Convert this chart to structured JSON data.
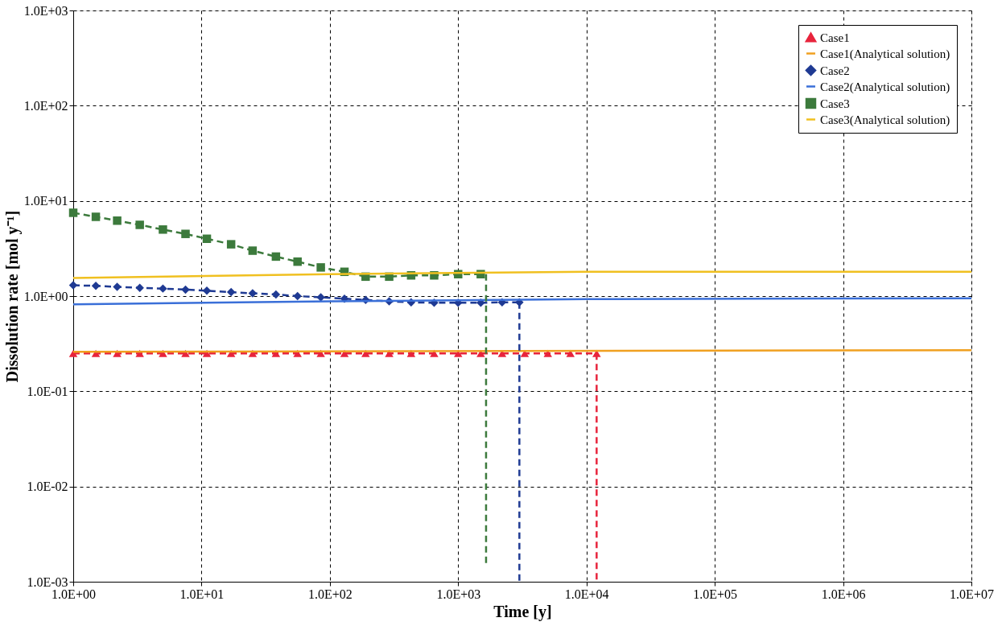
{
  "chart_data": {
    "type": "line",
    "xlabel": "Time [y]",
    "ylabel": "Dissolution rate [mol y⁻¹]",
    "log": "xy",
    "grid": true,
    "legend": "top right",
    "xlim": [
      1,
      10000000
    ],
    "ylim": [
      0.001,
      1000
    ],
    "xticks": [
      {
        "value": 1,
        "label": "1.0E+00"
      },
      {
        "value": 10,
        "label": "1.0E+01"
      },
      {
        "value": 100,
        "label": "1.0E+02"
      },
      {
        "value": 1000,
        "label": "1.0E+03"
      },
      {
        "value": 10000,
        "label": "1.0E+04"
      },
      {
        "value": 100000,
        "label": "1.0E+05"
      },
      {
        "value": 1000000,
        "label": "1.0E+06"
      },
      {
        "value": 10000000,
        "label": "1.0E+07"
      }
    ],
    "yticks": [
      {
        "value": 0.001,
        "label": "1.0E-03"
      },
      {
        "value": 0.01,
        "label": "1.0E-02"
      },
      {
        "value": 0.1,
        "label": "1.0E-01"
      },
      {
        "value": 1,
        "label": "1.0E+00"
      },
      {
        "value": 10,
        "label": "1.0E+01"
      },
      {
        "value": 100,
        "label": "1.0E+02"
      },
      {
        "value": 1000,
        "label": "1.0E+03"
      }
    ],
    "series": [
      {
        "name": "Case1",
        "color": "#e8243c",
        "marker": "triangle",
        "line_style": "dashed",
        "x": [
          1,
          1.5,
          2.2,
          3.3,
          5,
          7.5,
          11,
          17,
          25,
          38,
          56,
          85,
          130,
          190,
          290,
          430,
          650,
          1000,
          1500,
          2200,
          3300,
          5000,
          7500,
          12000
        ],
        "values": [
          0.25,
          0.25,
          0.25,
          0.25,
          0.25,
          0.25,
          0.25,
          0.25,
          0.25,
          0.25,
          0.25,
          0.25,
          0.25,
          0.25,
          0.25,
          0.25,
          0.25,
          0.25,
          0.25,
          0.25,
          0.25,
          0.25,
          0.25,
          0.25
        ]
      },
      {
        "name": "Case1(Analytical solution)",
        "color": "#f0a020",
        "marker": "none",
        "line_style": "solid",
        "x": [
          1,
          10000000
        ],
        "values": [
          0.26,
          0.27
        ]
      },
      {
        "name": "Case2",
        "color": "#1f3a93",
        "marker": "diamond",
        "line_style": "dashed",
        "x": [
          1,
          1.5,
          2.2,
          3.3,
          5,
          7.5,
          11,
          17,
          25,
          38,
          56,
          85,
          130,
          190,
          290,
          430,
          650,
          1000,
          1500,
          2200,
          3000
        ],
        "values": [
          1.3,
          1.28,
          1.25,
          1.22,
          1.2,
          1.17,
          1.14,
          1.1,
          1.07,
          1.04,
          1.0,
          0.97,
          0.94,
          0.91,
          0.88,
          0.86,
          0.85,
          0.85,
          0.85,
          0.86,
          0.86
        ]
      },
      {
        "name": "Case2(Analytical solution)",
        "color": "#3a6fd8",
        "marker": "none",
        "line_style": "solid",
        "x": [
          1,
          100,
          10000,
          10000000
        ],
        "values": [
          0.82,
          0.88,
          0.93,
          0.95
        ]
      },
      {
        "name": "Case3",
        "color": "#3c7a3c",
        "marker": "square",
        "line_style": "dashed",
        "x": [
          1,
          1.5,
          2.2,
          3.3,
          5,
          7.5,
          11,
          17,
          25,
          38,
          56,
          85,
          130,
          190,
          290,
          430,
          650,
          1000,
          1500
        ],
        "values": [
          7.5,
          6.8,
          6.2,
          5.6,
          5.0,
          4.5,
          4.0,
          3.5,
          3.0,
          2.6,
          2.3,
          2.0,
          1.8,
          1.6,
          1.6,
          1.65,
          1.65,
          1.7,
          1.7
        ]
      },
      {
        "name": "Case3(Analytical solution)",
        "color": "#f0c020",
        "marker": "none",
        "line_style": "solid",
        "x": [
          1,
          100,
          10000,
          10000000
        ],
        "values": [
          1.55,
          1.7,
          1.8,
          1.8
        ]
      },
      {
        "color": "#e8243c",
        "marker": "none",
        "line_style": "dashed",
        "x": [
          12000,
          12000
        ],
        "values": [
          0.25,
          0.001
        ]
      },
      {
        "color": "#1f3a93",
        "marker": "none",
        "line_style": "dashed",
        "x": [
          3000,
          3000
        ],
        "values": [
          0.86,
          0.001
        ]
      },
      {
        "color": "#3c7a3c",
        "marker": "none",
        "line_style": "dashed",
        "x": [
          1650,
          1650
        ],
        "values": [
          1.7,
          0.0015
        ]
      }
    ]
  }
}
